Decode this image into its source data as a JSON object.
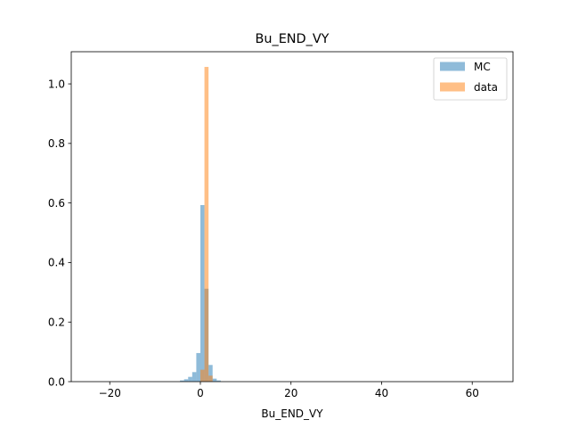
{
  "chart_data": {
    "type": "histogram",
    "title": "Bu_END_VY",
    "xlabel": "Bu_END_VY",
    "ylabel": "",
    "xlim": [
      -28.5,
      69
    ],
    "ylim": [
      0,
      1.108
    ],
    "xticks": [
      -20,
      0,
      20,
      40,
      60
    ],
    "xtick_labels": [
      "−20",
      "0",
      "20",
      "40",
      "60"
    ],
    "yticks": [
      0.0,
      0.2,
      0.4,
      0.6,
      0.8,
      1.0
    ],
    "ytick_labels": [
      "0.0",
      "0.2",
      "0.4",
      "0.6",
      "0.8",
      "1.0"
    ],
    "grid": false,
    "legend_position": "top-right",
    "series": [
      {
        "name": "MC",
        "color": "#1f77b4",
        "opacity": 0.5,
        "bin_width": 0.9,
        "bins": [
          {
            "x0": -4.5,
            "value": 0.004
          },
          {
            "x0": -3.6,
            "value": 0.008
          },
          {
            "x0": -2.7,
            "value": 0.016
          },
          {
            "x0": -1.8,
            "value": 0.032
          },
          {
            "x0": -0.9,
            "value": 0.096
          },
          {
            "x0": 0.0,
            "value": 0.593
          },
          {
            "x0": 0.9,
            "value": 0.312
          },
          {
            "x0": 1.8,
            "value": 0.056
          },
          {
            "x0": 2.7,
            "value": 0.01
          },
          {
            "x0": 3.6,
            "value": 0.004
          }
        ]
      },
      {
        "name": "data",
        "color": "#ff7f0e",
        "opacity": 0.5,
        "bin_width": 0.9,
        "bins": [
          {
            "x0": 0.0,
            "value": 0.04
          },
          {
            "x0": 0.9,
            "value": 1.057
          },
          {
            "x0": 1.8,
            "value": 0.02
          }
        ]
      }
    ]
  }
}
